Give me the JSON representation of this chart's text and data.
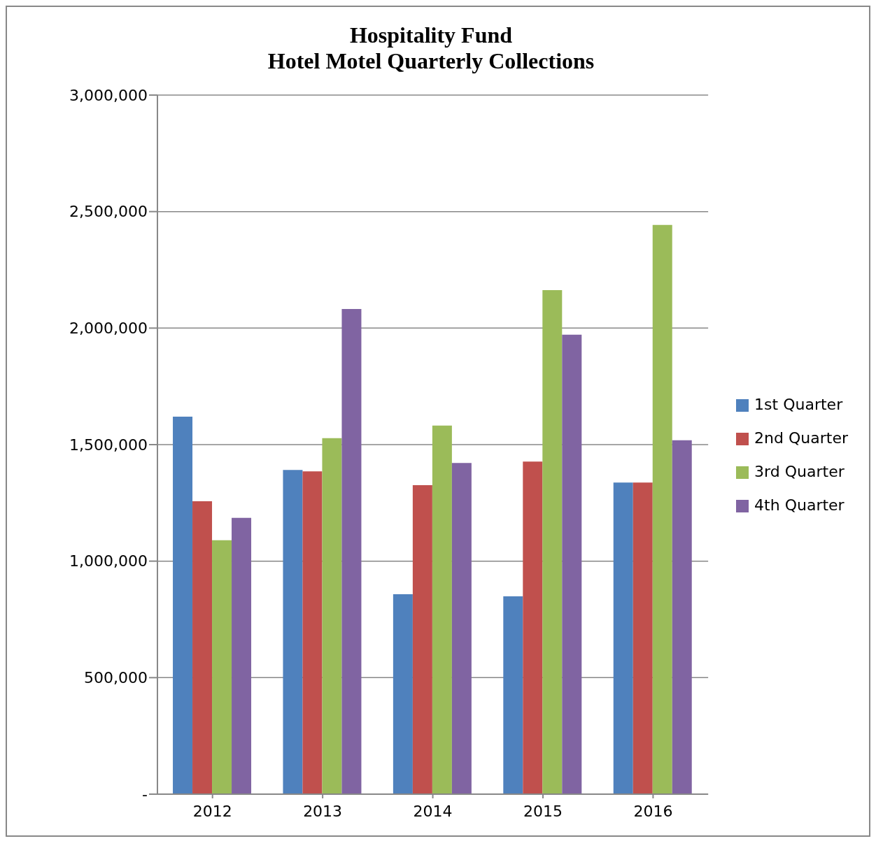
{
  "chart_data": {
    "type": "bar",
    "title": "Hospitality Fund",
    "subtitle": "Hotel Motel Quarterly Collections",
    "categories": [
      "2012",
      "2013",
      "2014",
      "2015",
      "2016"
    ],
    "series": [
      {
        "name": "1st Quarter",
        "color": "#4f81bd",
        "values": [
          1620000,
          1391000,
          858000,
          849000,
          1337000
        ]
      },
      {
        "name": "2nd Quarter",
        "color": "#c0504d",
        "values": [
          1257000,
          1385000,
          1326000,
          1427000,
          1337000
        ]
      },
      {
        "name": "3rd Quarter",
        "color": "#9bbb59",
        "values": [
          1090000,
          1528000,
          1582000,
          2163000,
          2443000
        ]
      },
      {
        "name": "4th Quarter",
        "color": "#8064a2",
        "values": [
          1186000,
          2082000,
          1421000,
          1972000,
          1519000
        ]
      }
    ],
    "ylim": [
      0,
      3000000
    ],
    "yticks": [
      {
        "value": 0,
        "label": "-"
      },
      {
        "value": 500000,
        "label": "500,000"
      },
      {
        "value": 1000000,
        "label": "1,000,000"
      },
      {
        "value": 1500000,
        "label": "1,500,000"
      },
      {
        "value": 2000000,
        "label": "2,000,000"
      },
      {
        "value": 2500000,
        "label": "2,500,000"
      },
      {
        "value": 3000000,
        "label": "3,000,000"
      }
    ],
    "grid": "y",
    "legend": "right"
  }
}
